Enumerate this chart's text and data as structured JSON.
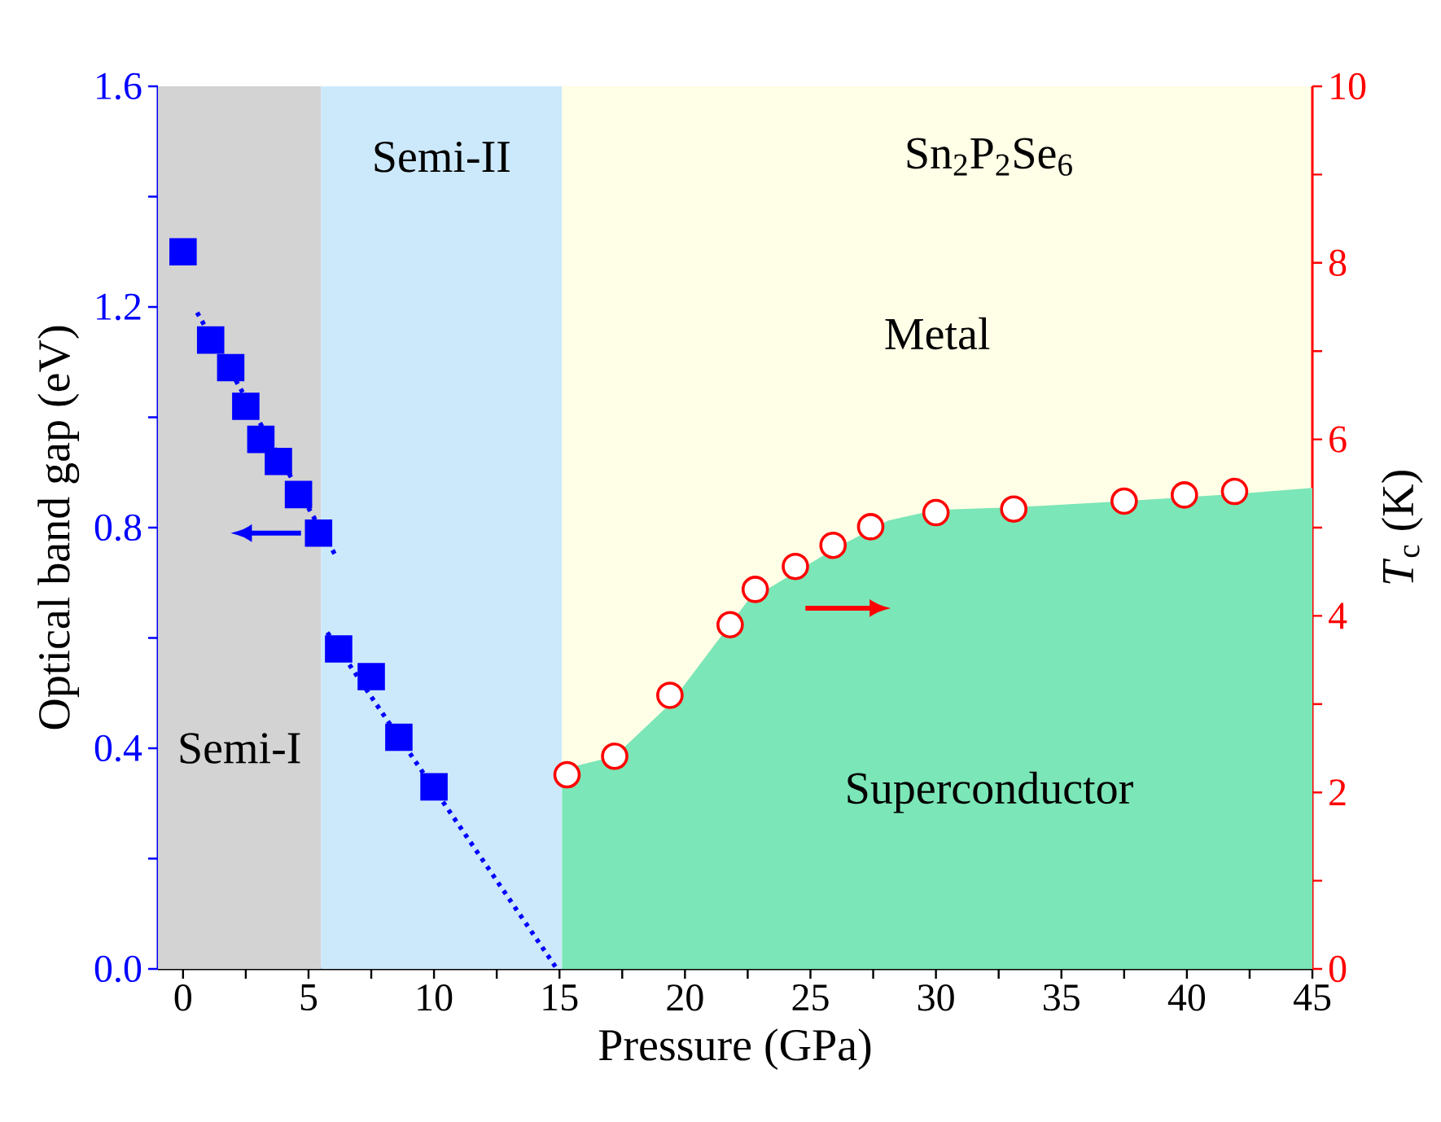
{
  "chart_data": {
    "type": "scatter",
    "annotations": [
      "Sn$_{2}$P$_{2}$Se$_{6}$"
    ],
    "xlabel": "Pressure (GPa)",
    "ylabel": "Optical band gap (eV)",
    "y2label": "*T*$_{c}$ (K)",
    "xlim": [
      -1,
      45
    ],
    "ylim": [
      0,
      1.6
    ],
    "y2lim": [
      0,
      10
    ],
    "xticks": [
      0,
      {
        "value": 2.5,
        "label": null
      },
      5,
      {
        "value": 7.5,
        "label": null
      },
      10,
      {
        "value": 12.5,
        "label": null
      },
      15,
      {
        "value": 17.5,
        "label": null
      },
      20,
      {
        "value": 22.5,
        "label": null
      },
      25,
      {
        "value": 27.5,
        "label": null
      },
      30,
      {
        "value": 32.5,
        "label": null
      },
      35,
      {
        "value": 37.5,
        "label": null
      },
      40,
      {
        "value": 42.5,
        "label": null
      },
      45
    ],
    "yticks": [
      {
        "value": 0,
        "label": "0.0"
      },
      {
        "value": 0.2,
        "label": null
      },
      0.4,
      {
        "value": 0.6,
        "label": null
      },
      0.8,
      {
        "value": 1.0,
        "label": null
      },
      1.2,
      {
        "value": 1.4,
        "label": null
      },
      1.6
    ],
    "y2ticks": [
      0,
      {
        "value": 1,
        "label": null
      },
      2,
      {
        "value": 3,
        "label": null
      },
      4,
      {
        "value": 5,
        "label": null
      },
      6,
      {
        "value": 7,
        "label": null
      },
      8,
      {
        "value": 9,
        "label": null
      },
      10
    ],
    "bands": [
      {
        "axis": "x",
        "from": -1,
        "to": 5.5,
        "label": "Semi-I",
        "color": "#d3d3d3"
      },
      {
        "axis": "x",
        "from": 5.5,
        "to": 15.1,
        "label": "Semi-II",
        "color": "#cce9fb"
      },
      {
        "axis": "x",
        "from": 15.1,
        "to": 45,
        "label": "Metal",
        "color": "#fffee6"
      }
    ],
    "series": [
      {
        "axis": "y",
        "color": "#0000ff",
        "marker": "square",
        "x": [
          0.0,
          1.1,
          1.9,
          2.5,
          3.1,
          3.8,
          4.6,
          5.4,
          6.2,
          7.5,
          8.6,
          10.0
        ],
        "values": [
          1.3,
          1.14,
          1.09,
          1.02,
          0.96,
          0.92,
          0.86,
          0.79,
          0.58,
          0.53,
          0.42,
          0.33
        ]
      },
      {
        "type": "line",
        "axis": "y",
        "color": "#0000ff",
        "line_style": "dotted",
        "marker": "none",
        "x": [
          0.56,
          6.07
        ],
        "values": [
          1.19,
          0.75
        ]
      },
      {
        "type": "line",
        "axis": "y",
        "color": "#0000ff",
        "line_style": "dotted",
        "marker": "none",
        "x": [
          5.75,
          14.9
        ],
        "values": [
          0.61,
          0.0
        ]
      },
      {
        "type": "area",
        "axis": "y2",
        "name": "Superconductor",
        "color": "#7be6b7",
        "x": [
          15.1,
          17.2,
          19.4,
          22.5,
          25.9,
          28.1,
          30.0,
          33.1,
          37.5,
          41.9,
          45.0
        ],
        "values": [
          2.26,
          2.41,
          3.0,
          4.17,
          4.75,
          5.08,
          5.2,
          5.23,
          5.3,
          5.38,
          5.45
        ]
      },
      {
        "axis": "y2",
        "color": "#ff0000",
        "marker": "circle",
        "x": [
          15.3,
          17.2,
          19.4,
          21.8,
          22.8,
          24.4,
          25.9,
          27.4,
          30.0,
          33.1,
          37.5,
          39.9,
          41.9
        ],
        "values": [
          2.2,
          2.41,
          3.1,
          3.9,
          4.3,
          4.56,
          4.8,
          5.01,
          5.17,
          5.21,
          5.3,
          5.37,
          5.41
        ]
      }
    ]
  }
}
